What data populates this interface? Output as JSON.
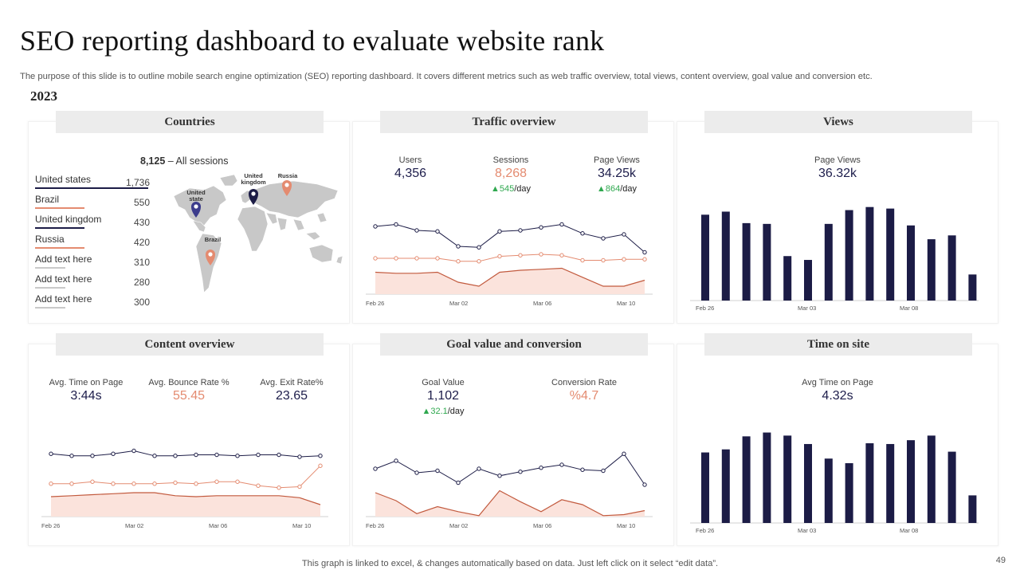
{
  "header": {
    "title": "SEO reporting dashboard to evaluate website rank",
    "subtitle": "The purpose of this slide is to outline mobile search engine optimization (SEO) reporting dashboard. It covers different metrics such as web traffic overview, total views, content overview, goal value and conversion etc.",
    "year": "2023"
  },
  "colors": {
    "navy": "#1c1c46",
    "orange": "#e48b70",
    "fill": "#fbe3dc",
    "grey": "#c9c9c9",
    "green": "#2fa84f"
  },
  "countries": {
    "title": "Countries",
    "sessions_total": "8,125",
    "sessions_label": "– All sessions",
    "rows": [
      {
        "name": "United states",
        "value": "1,736",
        "line_color": "#1c1c46"
      },
      {
        "name": "Brazil",
        "value": "550",
        "line_color": "#e48b70"
      },
      {
        "name": "United kingdom",
        "value": "430",
        "line_color": "#1c1c46"
      },
      {
        "name": "Russia",
        "value": "420",
        "line_color": "#e48b70"
      },
      {
        "name": "Add text here",
        "value": "310",
        "line_color": "#c9c9c9"
      },
      {
        "name": "Add text here",
        "value": "280",
        "line_color": "#c9c9c9"
      },
      {
        "name": "Add text here",
        "value": "300",
        "line_color": "#c9c9c9"
      }
    ],
    "pins": [
      {
        "label": "United state",
        "color": "#3c3c8c"
      },
      {
        "label": "United kingdom",
        "color": "#1c1c46"
      },
      {
        "label": "Russia",
        "color": "#e48b70"
      },
      {
        "label": "Brazil",
        "color": "#e48b70"
      }
    ]
  },
  "traffic": {
    "title": "Traffic overview",
    "users_label": "Users",
    "users_value": "4,356",
    "sessions_label": "Sessions",
    "sessions_value": "8,268",
    "sessions_delta": "545",
    "sessions_delta_unit": "/day",
    "pageviews_label": "Page Views",
    "pageviews_value": "34.25k",
    "pageviews_delta": "864",
    "pageviews_delta_unit": "/day"
  },
  "views": {
    "title": "Views",
    "label": "Page Views",
    "value": "36.32k"
  },
  "content": {
    "title": "Content overview",
    "time_label": "Avg. Time on Page",
    "time_value": "3:44s",
    "bounce_label": "Avg. Bounce Rate %",
    "bounce_value": "55.45",
    "exit_label": "Avg. Exit Rate%",
    "exit_value": "23.65"
  },
  "goal": {
    "title": "Goal value and conversion",
    "goal_label": "Goal Value",
    "goal_value": "1,102",
    "goal_delta": "32.1",
    "goal_delta_unit": "/day",
    "conv_label": "Conversion Rate",
    "conv_value": "%4.7"
  },
  "time": {
    "title": "Time on site",
    "label": "Avg Time on Page",
    "value": "4.32s"
  },
  "footer": {
    "note": "This graph is linked to excel, & changes automatically based on data. Just left click on it select “edit data”.",
    "page": "49"
  },
  "chart_data": [
    {
      "id": "traffic",
      "type": "line",
      "x_ticks": [
        "Feb 26",
        "Mar 02",
        "Mar 06",
        "Mar 10"
      ],
      "series": [
        {
          "name": "Users",
          "values": [
            68,
            70,
            64,
            63,
            48,
            47,
            63,
            64,
            67,
            70,
            61,
            56,
            60,
            42
          ],
          "color": "#1c1c46"
        },
        {
          "name": "Sessions",
          "values": [
            36,
            36,
            36,
            36,
            33,
            33,
            38,
            39,
            40,
            39,
            34,
            34,
            35,
            35
          ],
          "color": "#e48b70"
        },
        {
          "name": "Page Views",
          "values": [
            22,
            21,
            21,
            22,
            12,
            8,
            22,
            24,
            25,
            26,
            17,
            8,
            8,
            14
          ],
          "color": "#c25a3e",
          "area": true
        }
      ]
    },
    {
      "id": "views",
      "type": "bar",
      "x_ticks": [
        "Feb 26",
        "Mar 03",
        "Mar 08"
      ],
      "values": [
        112,
        116,
        101,
        100,
        58,
        53,
        100,
        118,
        122,
        120,
        98,
        80,
        85,
        34
      ],
      "color": "#1c1c46",
      "ylim": [
        0,
        130
      ]
    },
    {
      "id": "content",
      "type": "line",
      "x_ticks": [
        "Feb 26",
        "Mar 02",
        "Mar 06",
        "Mar 10"
      ],
      "series": [
        {
          "name": "Avg. Time on Page",
          "values": [
            63,
            61,
            61,
            63,
            66,
            61,
            61,
            62,
            62,
            61,
            62,
            62,
            60,
            61
          ],
          "color": "#1c1c46"
        },
        {
          "name": "Avg. Bounce Rate %",
          "values": [
            33,
            33,
            35,
            33,
            33,
            33,
            34,
            33,
            35,
            35,
            31,
            29,
            30,
            51
          ],
          "color": "#e48b70"
        },
        {
          "name": "Avg. Exit Rate%",
          "values": [
            20,
            21,
            22,
            23,
            24,
            24,
            21,
            20,
            21,
            21,
            21,
            21,
            19,
            12
          ],
          "color": "#c25a3e",
          "area": true
        }
      ]
    },
    {
      "id": "goal",
      "type": "line",
      "x_ticks": [
        "Feb 26",
        "Mar 02",
        "Mar 06",
        "Mar 10"
      ],
      "series": [
        {
          "name": "Goal Value",
          "values": [
            48,
            56,
            44,
            46,
            34,
            48,
            41,
            45,
            49,
            52,
            47,
            46,
            63,
            32
          ],
          "color": "#1c1c46"
        },
        {
          "name": "Conversion Rate",
          "values": [
            24,
            16,
            3,
            10,
            5,
            1,
            26,
            15,
            5,
            17,
            12,
            1,
            2,
            6
          ],
          "color": "#c25a3e",
          "area": true
        }
      ]
    },
    {
      "id": "time",
      "type": "bar",
      "x_ticks": [
        "Feb 26",
        "Mar 03",
        "Mar 08"
      ],
      "values": [
        92,
        96,
        113,
        118,
        114,
        103,
        84,
        78,
        104,
        103,
        108,
        114,
        93,
        36
      ],
      "color": "#1c1c46",
      "ylim": [
        0,
        130
      ]
    }
  ]
}
